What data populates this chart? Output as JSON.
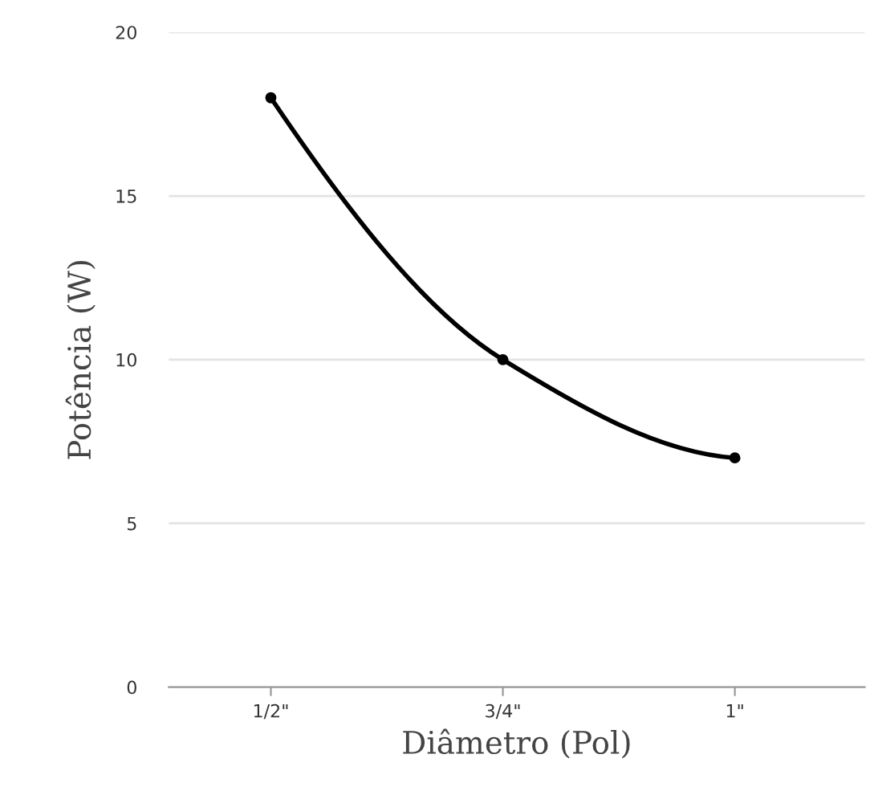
{
  "chart_data": {
    "type": "line",
    "xlabel": "Diâmetro (Pol)",
    "ylabel": "Potência (W)",
    "categories": [
      "1/2\"",
      "3/4\"",
      "1\""
    ],
    "series": [
      {
        "color": "#000000",
        "values": [
          18,
          10,
          7
        ]
      }
    ],
    "ylim": [
      0,
      20
    ],
    "yticks": [
      0,
      5,
      10,
      15,
      20
    ],
    "grid": "y",
    "marker": "circle",
    "line_style": "solid"
  }
}
